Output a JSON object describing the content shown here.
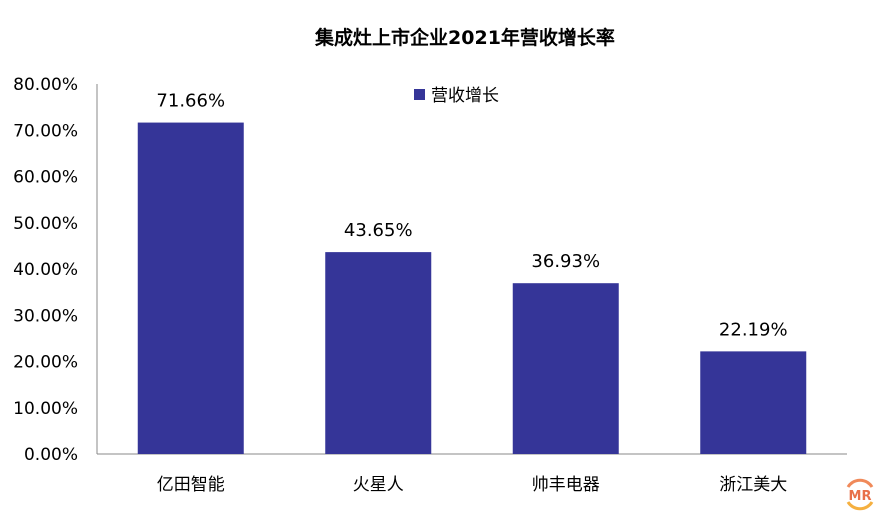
{
  "chart_data": {
    "type": "bar",
    "title": "集成灶上市企业2021年营收增长率",
    "categories": [
      "亿田智能",
      "火星人",
      "帅丰电器",
      "浙江美大"
    ],
    "series": [
      {
        "name": "营收增长",
        "values": [
          71.66,
          43.65,
          36.93,
          22.19
        ],
        "color": "#353598"
      }
    ],
    "data_labels": [
      "71.66%",
      "43.65%",
      "36.93%",
      "22.19%"
    ],
    "yticks": [
      "0.00%",
      "10.00%",
      "20.00%",
      "30.00%",
      "40.00%",
      "50.00%",
      "60.00%",
      "70.00%",
      "80.00%"
    ],
    "ylim": [
      0,
      80
    ],
    "xlabel": "",
    "ylabel": "",
    "grid": false,
    "legend": "top-center"
  },
  "watermark": "MR"
}
